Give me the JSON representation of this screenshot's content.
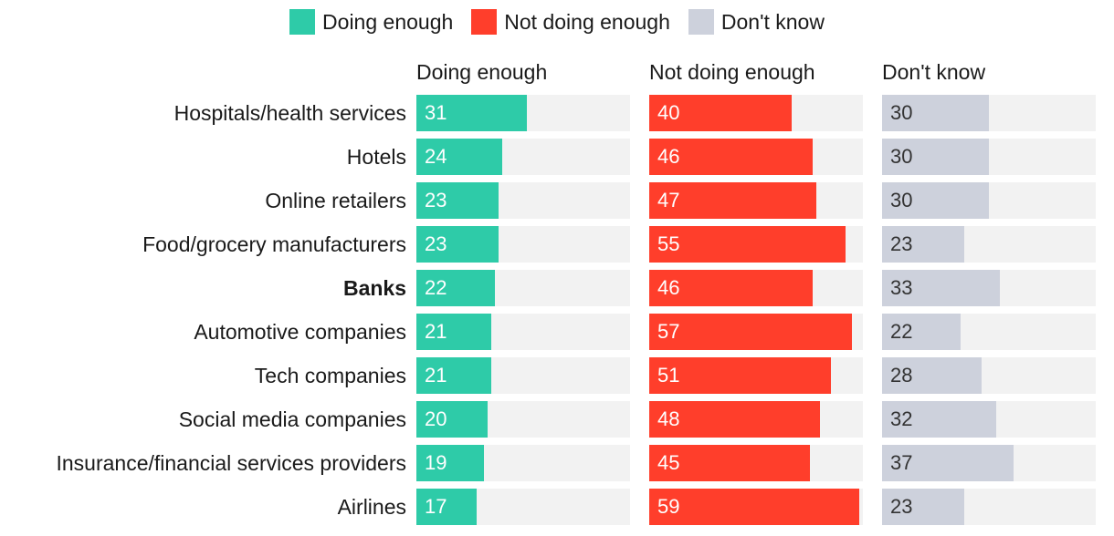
{
  "chart_data": {
    "type": "bar",
    "orientation": "horizontal",
    "layout": "small-multiples",
    "title": "",
    "legend": [
      {
        "name": "Doing enough",
        "color": "#2ecba8"
      },
      {
        "name": "Not doing enough",
        "color": "#ff3e2b"
      },
      {
        "name": "Don't know",
        "color": "#cdd1dc"
      }
    ],
    "categories": [
      "Hospitals/health services",
      "Hotels",
      "Online retailers",
      "Food/grocery manufacturers",
      "Banks",
      "Automotive companies",
      "Tech companies",
      "Social media companies",
      "Insurance/financial services providers",
      "Airlines"
    ],
    "highlight": "Banks",
    "series": [
      {
        "name": "Doing enough",
        "values": [
          31,
          24,
          23,
          23,
          22,
          21,
          21,
          20,
          19,
          17
        ]
      },
      {
        "name": "Not doing enough",
        "values": [
          40,
          46,
          47,
          55,
          46,
          57,
          51,
          48,
          45,
          59
        ]
      },
      {
        "name": "Don't know",
        "values": [
          30,
          30,
          30,
          23,
          33,
          22,
          28,
          32,
          37,
          23
        ]
      }
    ],
    "xlim": [
      0,
      60
    ],
    "track_color": "#f2f2f2",
    "value_label_colors": [
      "#ffffff",
      "#ffffff",
      "#333333"
    ]
  }
}
